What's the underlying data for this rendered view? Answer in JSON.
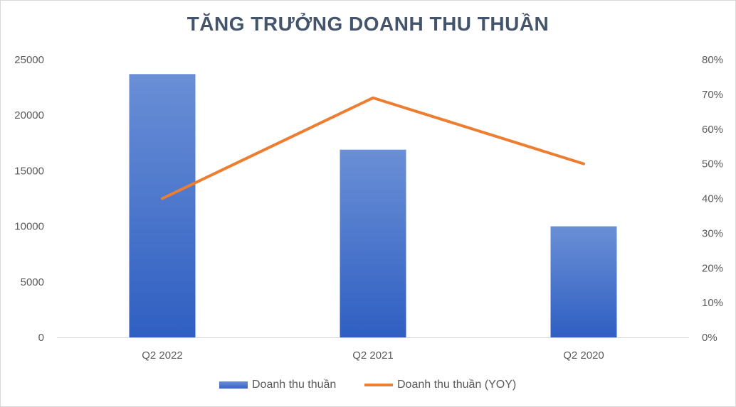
{
  "chart_data": {
    "type": "bar",
    "title": "TĂNG TRƯỞNG DOANH THU THUẦN",
    "categories": [
      "Q2 2022",
      "Q2 2021",
      "Q2 2020"
    ],
    "series": [
      {
        "name": "Doanh thu thuần",
        "type": "bar",
        "axis": "left",
        "values": [
          23700,
          16900,
          10000
        ],
        "color": "#4472c4"
      },
      {
        "name": "Doanh thu thuần (YOY)",
        "type": "line",
        "axis": "right",
        "values": [
          0.4,
          0.69,
          0.5
        ],
        "color": "#ed7d31"
      }
    ],
    "left_axis": {
      "min": 0,
      "max": 25000,
      "step": 5000,
      "tick_labels": [
        "0",
        "5000",
        "10000",
        "15000",
        "20000",
        "25000"
      ]
    },
    "right_axis": {
      "min": 0,
      "max": 0.8,
      "step": 0.1,
      "tick_labels": [
        "0%",
        "10%",
        "20%",
        "30%",
        "40%",
        "50%",
        "60%",
        "70%",
        "80%"
      ]
    },
    "grid": false,
    "legend_position": "bottom"
  }
}
